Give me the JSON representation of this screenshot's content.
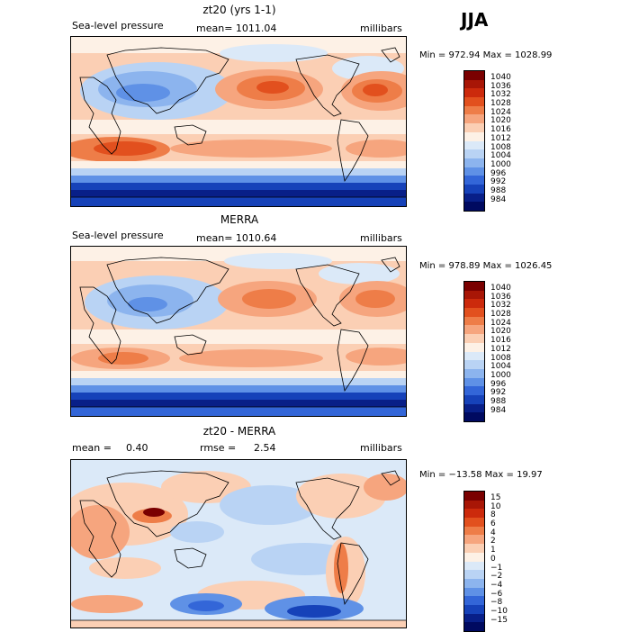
{
  "season": "JJA",
  "panels": [
    {
      "title": "zt20 (yrs 1-1)",
      "field_label": "Sea-level pressure",
      "stat": "mean= 1011.04",
      "units": "millibars",
      "minmax": "Min = 972.94 Max = 1028.99",
      "colorbar": {
        "labels": [
          "1040",
          "1036",
          "1032",
          "1028",
          "1024",
          "1020",
          "1016",
          "1012",
          "1008",
          "1004",
          "1000",
          "996",
          "992",
          "988",
          "984"
        ],
        "colors": [
          "#7a0000",
          "#a81606",
          "#cc2a0c",
          "#e2501e",
          "#ee7d48",
          "#f6a57e",
          "#fbcfb4",
          "#fdf1e6",
          "#dbe9f8",
          "#b9d3f4",
          "#8cb4ee",
          "#5f91e6",
          "#3366d8",
          "#1642b9",
          "#081f88",
          "#000a60"
        ]
      }
    },
    {
      "title": "MERRA",
      "field_label": "Sea-level pressure",
      "stat": "mean= 1010.64",
      "units": "millibars",
      "minmax": "Min = 978.89 Max = 1026.45",
      "colorbar": {
        "labels": [
          "1040",
          "1036",
          "1032",
          "1028",
          "1024",
          "1020",
          "1016",
          "1012",
          "1008",
          "1004",
          "1000",
          "996",
          "992",
          "988",
          "984"
        ],
        "colors": [
          "#7a0000",
          "#a81606",
          "#cc2a0c",
          "#e2501e",
          "#ee7d48",
          "#f6a57e",
          "#fbcfb4",
          "#fdf1e6",
          "#dbe9f8",
          "#b9d3f4",
          "#8cb4ee",
          "#5f91e6",
          "#3366d8",
          "#1642b9",
          "#081f88",
          "#000a60"
        ]
      }
    },
    {
      "title": "zt20 - MERRA",
      "stat_label": "mean =",
      "stat_value": "0.40",
      "rmse_label": "rmse =",
      "rmse_value": "2.54",
      "units": "millibars",
      "minmax": "Min = −13.58 Max =   19.97",
      "colorbar": {
        "labels": [
          "15",
          "10",
          "8",
          "6",
          "4",
          "2",
          "1",
          "0",
          "−1",
          "−2",
          "−4",
          "−6",
          "−8",
          "−10",
          "−15"
        ],
        "colors": [
          "#7a0000",
          "#a81606",
          "#cc2a0c",
          "#e2501e",
          "#ee7d48",
          "#f6a57e",
          "#fbcfb4",
          "#fdf1e6",
          "#dbe9f8",
          "#b9d3f4",
          "#8cb4ee",
          "#5f91e6",
          "#3366d8",
          "#1642b9",
          "#081f88",
          "#000a60"
        ]
      }
    }
  ]
}
